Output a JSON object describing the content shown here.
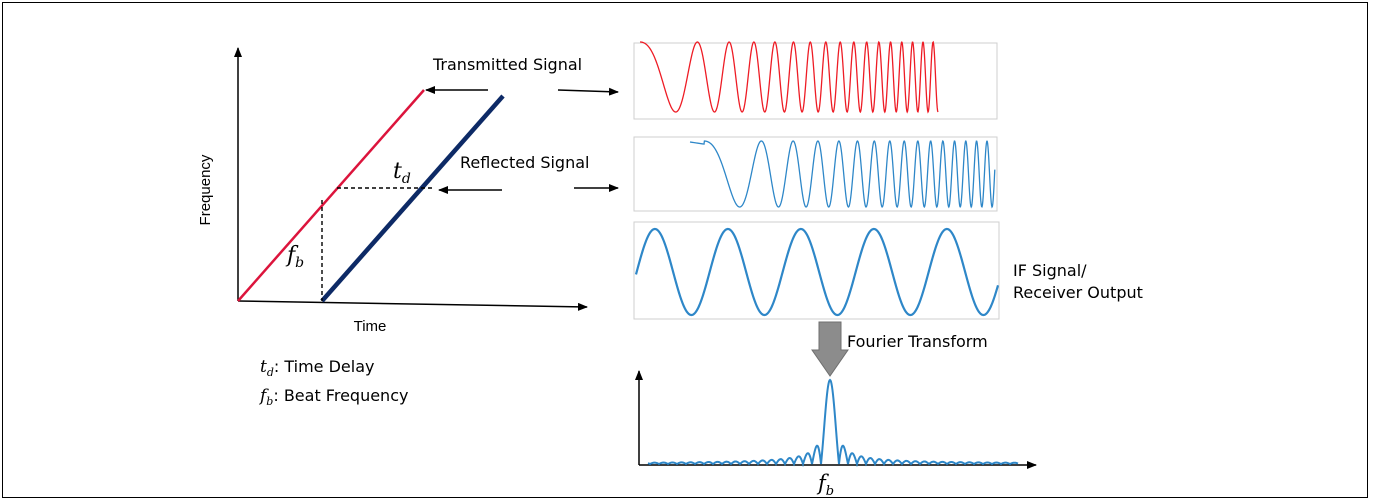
{
  "colors": {
    "transmitted": "#ee1c25",
    "reflected": "#2e87c8",
    "if_signal": "#2e87c8",
    "spectrum": "#2e87c8",
    "chirp_tx": "#dc143c",
    "chirp_rx": "#0d2a66",
    "arrow_block": "#8c8c8c"
  },
  "chirp_plot": {
    "y_axis_label": "Frequency",
    "x_axis_label": "Time",
    "delay_symbol": "t",
    "delay_subscript": "d",
    "beat_symbol": "f",
    "beat_subscript": "b"
  },
  "legend": [
    {
      "symbol": "t",
      "subscript": "d",
      "text": ": Time Delay"
    },
    {
      "symbol": "f",
      "subscript": "b",
      "text": ": Beat Frequency"
    }
  ],
  "signals": {
    "transmitted_label": "Transmitted Signal",
    "reflected_label": "Reflected Signal",
    "if_label_line1": "IF Signal/",
    "if_label_line2": "Receiver Output",
    "fourier_label": "Fourier Transform"
  },
  "spectrum_plot": {
    "peak_symbol": "f",
    "peak_subscript": "b"
  }
}
